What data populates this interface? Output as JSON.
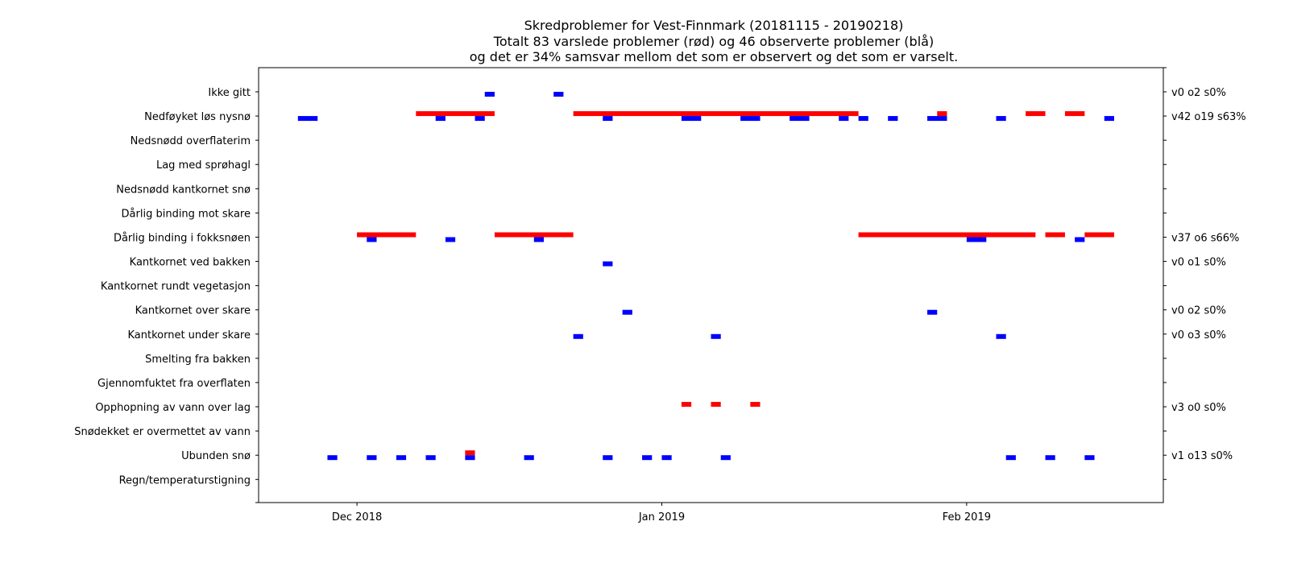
{
  "chart_data": {
    "type": "timeline",
    "title": [
      "Skredproblemer for Vest-Finnmark (20181115 - 20190218)",
      "Totalt 83 varslede problemer (rød) og 46 observerte problemer (blå)",
      "og det er 34% samsvar mellom det som er observert og det som er varselt."
    ],
    "xlim": [
      "2018-11-21",
      "2019-02-21"
    ],
    "x_ticks": [
      {
        "date": "2018-12-01",
        "label": "Dec 2018"
      },
      {
        "date": "2019-01-01",
        "label": "Jan 2019"
      },
      {
        "date": "2019-02-01",
        "label": "Feb 2019"
      }
    ],
    "categories": [
      "Ikke gitt",
      "Nedføyket løs nysnø",
      "Nedsnødd overflaterim",
      "Lag med sprøhagl",
      "Nedsnødd kantkornet snø",
      "Dårlig binding mot skare",
      "Dårlig binding i fokksnøen",
      "Kantkornet ved bakken",
      "Kantkornet rundt vegetasjon",
      "Kantkornet over skare",
      "Kantkornet under skare",
      "Smelting fra bakken",
      "Gjennomfuktet fra overflaten",
      "Opphopning av vann over lag",
      "Snødekket er overmettet av vann",
      "Ubunden snø",
      "Regn/temperaturstigning"
    ],
    "right_labels": [
      "v0 o2 s0%",
      "v42 o19 s63%",
      "",
      "",
      "",
      "",
      "v37 o6 s66%",
      "v0 o1 s0%",
      "",
      "v0 o2 s0%",
      "v0 o3 s0%",
      "",
      "",
      "v3 o0 s0%",
      "",
      "v1 o13 s0%",
      ""
    ],
    "series": [
      {
        "color": "#ff0000",
        "segments": [
          {
            "row": 1,
            "start": "2018-12-07",
            "end": "2018-12-15"
          },
          {
            "row": 1,
            "start": "2018-12-23",
            "end": "2019-01-21"
          },
          {
            "row": 1,
            "start": "2019-01-29",
            "end": "2019-01-30"
          },
          {
            "row": 1,
            "start": "2019-02-07",
            "end": "2019-02-09"
          },
          {
            "row": 1,
            "start": "2019-02-11",
            "end": "2019-02-13"
          },
          {
            "row": 6,
            "start": "2018-12-01",
            "end": "2018-12-07"
          },
          {
            "row": 6,
            "start": "2018-12-15",
            "end": "2018-12-23"
          },
          {
            "row": 6,
            "start": "2019-01-21",
            "end": "2019-02-08"
          },
          {
            "row": 6,
            "start": "2019-02-09",
            "end": "2019-02-11"
          },
          {
            "row": 6,
            "start": "2019-02-13",
            "end": "2019-02-16"
          },
          {
            "row": 13,
            "start": "2019-01-03",
            "end": "2019-01-04"
          },
          {
            "row": 13,
            "start": "2019-01-06",
            "end": "2019-01-07"
          },
          {
            "row": 13,
            "start": "2019-01-10",
            "end": "2019-01-11"
          },
          {
            "row": 15,
            "start": "2018-12-12",
            "end": "2018-12-13"
          }
        ]
      },
      {
        "color": "#0000ff",
        "segments": [
          {
            "row": 0,
            "start": "2018-12-14",
            "end": "2018-12-15"
          },
          {
            "row": 0,
            "start": "2018-12-21",
            "end": "2018-12-22"
          },
          {
            "row": 1,
            "start": "2018-11-25",
            "end": "2018-11-27"
          },
          {
            "row": 1,
            "start": "2018-12-09",
            "end": "2018-12-10"
          },
          {
            "row": 1,
            "start": "2018-12-13",
            "end": "2018-12-14"
          },
          {
            "row": 1,
            "start": "2018-12-26",
            "end": "2018-12-27"
          },
          {
            "row": 1,
            "start": "2019-01-03",
            "end": "2019-01-05"
          },
          {
            "row": 1,
            "start": "2019-01-09",
            "end": "2019-01-11"
          },
          {
            "row": 1,
            "start": "2019-01-14",
            "end": "2019-01-16"
          },
          {
            "row": 1,
            "start": "2019-01-19",
            "end": "2019-01-20"
          },
          {
            "row": 1,
            "start": "2019-01-21",
            "end": "2019-01-22"
          },
          {
            "row": 1,
            "start": "2019-01-24",
            "end": "2019-01-25"
          },
          {
            "row": 1,
            "start": "2019-01-28",
            "end": "2019-01-30"
          },
          {
            "row": 1,
            "start": "2019-02-04",
            "end": "2019-02-05"
          },
          {
            "row": 1,
            "start": "2019-02-15",
            "end": "2019-02-16"
          },
          {
            "row": 6,
            "start": "2018-12-02",
            "end": "2018-12-03"
          },
          {
            "row": 6,
            "start": "2018-12-10",
            "end": "2018-12-11"
          },
          {
            "row": 6,
            "start": "2018-12-19",
            "end": "2018-12-20"
          },
          {
            "row": 6,
            "start": "2019-02-01",
            "end": "2019-02-03"
          },
          {
            "row": 6,
            "start": "2019-02-12",
            "end": "2019-02-13"
          },
          {
            "row": 7,
            "start": "2018-12-26",
            "end": "2018-12-27"
          },
          {
            "row": 9,
            "start": "2018-12-28",
            "end": "2018-12-29"
          },
          {
            "row": 9,
            "start": "2019-01-28",
            "end": "2019-01-29"
          },
          {
            "row": 10,
            "start": "2018-12-23",
            "end": "2018-12-24"
          },
          {
            "row": 10,
            "start": "2019-01-06",
            "end": "2019-01-07"
          },
          {
            "row": 10,
            "start": "2019-02-04",
            "end": "2019-02-05"
          },
          {
            "row": 15,
            "start": "2018-11-28",
            "end": "2018-11-29"
          },
          {
            "row": 15,
            "start": "2018-12-02",
            "end": "2018-12-03"
          },
          {
            "row": 15,
            "start": "2018-12-05",
            "end": "2018-12-06"
          },
          {
            "row": 15,
            "start": "2018-12-08",
            "end": "2018-12-09"
          },
          {
            "row": 15,
            "start": "2018-12-12",
            "end": "2018-12-13"
          },
          {
            "row": 15,
            "start": "2018-12-18",
            "end": "2018-12-19"
          },
          {
            "row": 15,
            "start": "2018-12-26",
            "end": "2018-12-27"
          },
          {
            "row": 15,
            "start": "2018-12-30",
            "end": "2018-12-31"
          },
          {
            "row": 15,
            "start": "2019-01-01",
            "end": "2019-01-02"
          },
          {
            "row": 15,
            "start": "2019-01-07",
            "end": "2019-01-08"
          },
          {
            "row": 15,
            "start": "2019-02-05",
            "end": "2019-02-06"
          },
          {
            "row": 15,
            "start": "2019-02-09",
            "end": "2019-02-10"
          },
          {
            "row": 15,
            "start": "2019-02-13",
            "end": "2019-02-14"
          }
        ]
      }
    ]
  }
}
